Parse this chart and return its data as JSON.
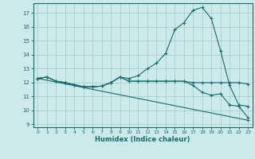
{
  "xlabel": "Humidex (Indice chaleur)",
  "bg_color": "#cceaea",
  "grid_color": "#aacece",
  "line_color": "#1a6b6b",
  "xlim": [
    -0.5,
    23.5
  ],
  "ylim": [
    8.8,
    17.7
  ],
  "xticks": [
    0,
    1,
    2,
    3,
    4,
    5,
    6,
    7,
    8,
    9,
    10,
    11,
    12,
    13,
    14,
    15,
    16,
    17,
    18,
    19,
    20,
    21,
    22,
    23
  ],
  "yticks": [
    9,
    10,
    11,
    12,
    13,
    14,
    15,
    16,
    17
  ],
  "line1_x": [
    0,
    1,
    2,
    3,
    4,
    5,
    6,
    7,
    8,
    9,
    10,
    11,
    12,
    13,
    14,
    15,
    16,
    17,
    18,
    19,
    20,
    21,
    22,
    23
  ],
  "line1_y": [
    12.3,
    12.4,
    12.1,
    12.0,
    11.85,
    11.7,
    11.7,
    11.75,
    12.0,
    12.4,
    12.3,
    12.5,
    13.0,
    13.4,
    14.1,
    15.8,
    16.3,
    17.2,
    17.4,
    16.6,
    14.3,
    11.8,
    10.4,
    10.3
  ],
  "line2_x": [
    0,
    1,
    2,
    3,
    4,
    5,
    6,
    7,
    8,
    9,
    10,
    11,
    12,
    13,
    14,
    15,
    16,
    17,
    18,
    19,
    20,
    21,
    22,
    23
  ],
  "line2_y": [
    12.3,
    12.4,
    12.1,
    12.0,
    11.85,
    11.7,
    11.7,
    11.75,
    12.0,
    12.4,
    12.1,
    12.1,
    12.1,
    12.1,
    12.1,
    12.1,
    12.1,
    12.0,
    12.0,
    12.0,
    12.0,
    12.0,
    12.0,
    11.9
  ],
  "line3_x": [
    0,
    23
  ],
  "line3_y": [
    12.3,
    9.3
  ],
  "line4_x": [
    0,
    1,
    2,
    3,
    4,
    5,
    6,
    7,
    8,
    9,
    10,
    11,
    12,
    13,
    14,
    15,
    16,
    17,
    18,
    19,
    20,
    21,
    22,
    23
  ],
  "line4_y": [
    12.3,
    12.4,
    12.1,
    12.0,
    11.85,
    11.7,
    11.7,
    11.75,
    12.0,
    12.4,
    12.1,
    12.1,
    12.1,
    12.1,
    12.1,
    12.1,
    12.1,
    11.8,
    11.3,
    11.1,
    11.2,
    10.4,
    10.3,
    9.5
  ]
}
